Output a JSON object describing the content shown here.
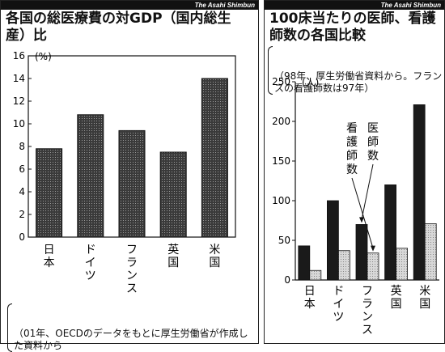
{
  "credit": "The Asahi Shimbun",
  "chart_data": [
    {
      "type": "bar",
      "title": "各国の総医療費の対GDP（国内総生産）比",
      "ylabel": "(%)",
      "ylim": [
        0,
        16
      ],
      "yticks": [
        0,
        2,
        4,
        6,
        8,
        10,
        12,
        14,
        16
      ],
      "categories": [
        "日本",
        "ドイツ",
        "フランス",
        "英国",
        "米国"
      ],
      "values": [
        7.8,
        10.8,
        9.4,
        7.5,
        14.0
      ],
      "note": "（01年、OECDのデータをもとに厚生労働省が作成した資料から"
    },
    {
      "type": "bar",
      "title": "100床当たりの医師、看護師数の各国比較",
      "subtitle": "（98年、厚生労働省資料から。フランスの看護師数は97年）",
      "ylabel": "(人)",
      "ylim": [
        0,
        250
      ],
      "yticks": [
        0,
        50,
        100,
        150,
        200,
        250
      ],
      "categories": [
        "日本",
        "ドイツ",
        "フランス",
        "英国",
        "米国"
      ],
      "series": [
        {
          "name": "医師数",
          "values": [
            43,
            100,
            70,
            120,
            221
          ],
          "color": "#1a1a1a"
        },
        {
          "name": "看護師数",
          "values": [
            12,
            37,
            34,
            40,
            71
          ],
          "color": "#cfcfcf"
        }
      ],
      "annotations": [
        {
          "text": "看護師数",
          "target_category": "フランス",
          "target_series": "看護師数"
        },
        {
          "text": "医師数",
          "target_category": "フランス",
          "target_series": "医師数"
        }
      ]
    }
  ]
}
